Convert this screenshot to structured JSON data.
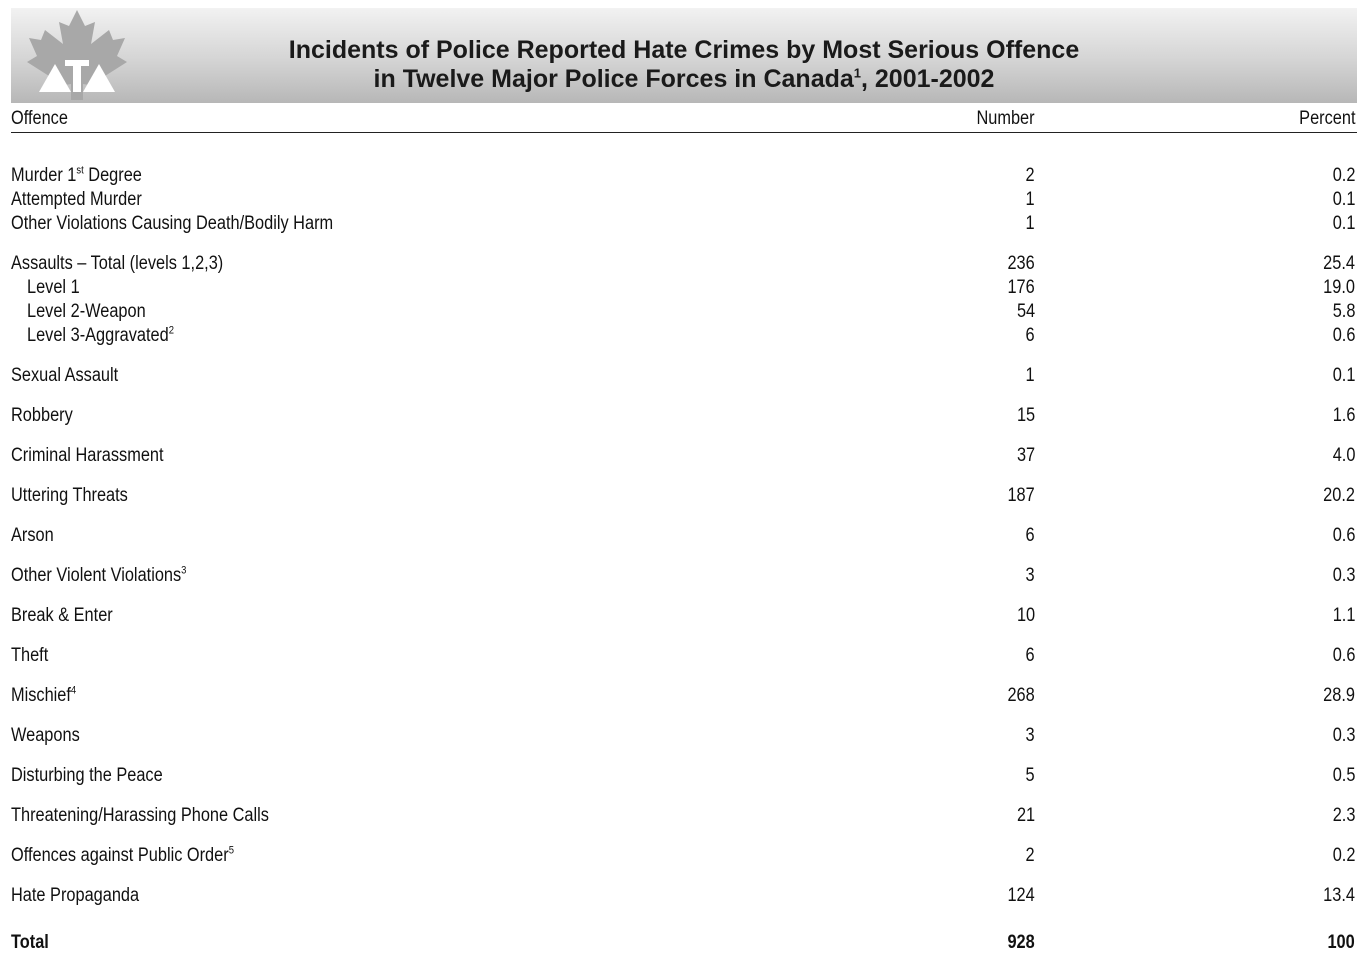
{
  "title": {
    "line1": "Incidents of Police Reported Hate Crimes by Most Serious Offence",
    "line2_a": "in Twelve Major Police Forces in Canada",
    "line2_sup": "1",
    "line2_b": ", 2001-2002"
  },
  "columns": {
    "offence": "Offence",
    "number": "Number",
    "percent": "Percent"
  },
  "rows": [
    {
      "offence": "Murder 1",
      "sup": "st",
      "offence_after": " Degree",
      "number": "2",
      "percent": "0.2"
    },
    {
      "offence": "Attempted Murder",
      "number": "1",
      "percent": "0.1"
    },
    {
      "offence": "Other Violations Causing Death/Bodily Harm",
      "number": "1",
      "percent": "0.1"
    },
    {
      "offence": "Assaults – Total (levels 1,2,3)",
      "number": "236",
      "percent": "25.4"
    },
    {
      "offence": "Level 1",
      "number": "176",
      "percent": "19.0"
    },
    {
      "offence": "Level 2-Weapon",
      "number": "54",
      "percent": "5.8"
    },
    {
      "offence": "Level 3-Aggravated",
      "sup": "2",
      "number": "6",
      "percent": "0.6"
    },
    {
      "offence": "Sexual Assault",
      "number": "1",
      "percent": "0.1"
    },
    {
      "offence": "Robbery",
      "number": "15",
      "percent": "1.6"
    },
    {
      "offence": "Criminal Harassment",
      "number": "37",
      "percent": "4.0"
    },
    {
      "offence": "Uttering Threats",
      "number": "187",
      "percent": "20.2"
    },
    {
      "offence": "Arson",
      "number": "6",
      "percent": "0.6"
    },
    {
      "offence": "Other Violent Violations",
      "sup": "3",
      "number": "3",
      "percent": "0.3"
    },
    {
      "offence": "Break & Enter",
      "number": "10",
      "percent": "1.1"
    },
    {
      "offence": "Theft",
      "number": "6",
      "percent": "0.6"
    },
    {
      "offence": "Mischief",
      "sup": "4",
      "number": "268",
      "percent": "28.9"
    },
    {
      "offence": "Weapons",
      "number": "3",
      "percent": "0.3"
    },
    {
      "offence": "Disturbing the Peace",
      "number": "5",
      "percent": "0.5"
    },
    {
      "offence": "Threatening/Harassing Phone Calls",
      "number": "21",
      "percent": "2.3"
    },
    {
      "offence": "Offences against Public Order",
      "sup": "5",
      "number": "2",
      "percent": "0.2"
    },
    {
      "offence": "Hate Propaganda",
      "number": "124",
      "percent": "13.4"
    }
  ],
  "total": {
    "offence": "Total",
    "number": "928",
    "percent": "100"
  }
}
